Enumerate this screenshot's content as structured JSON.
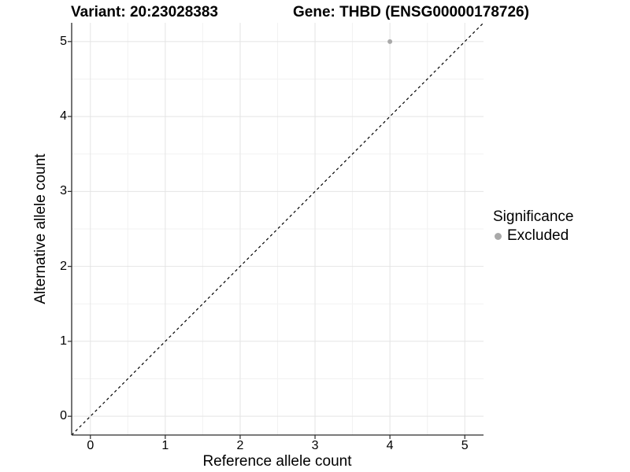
{
  "titles": {
    "variant": "Variant: 20:23028383",
    "gene": "Gene: THBD (ENSG00000178726)"
  },
  "legend": {
    "title": "Significance",
    "items": [
      {
        "label": "Excluded",
        "color": "#a9a9a9"
      }
    ]
  },
  "chart_data": {
    "type": "scatter",
    "title": "Variant: 20:23028383   Gene: THBD (ENSG00000178726)",
    "xlabel": "Reference allele count",
    "ylabel": "Alternative allele count",
    "xlim": [
      -0.25,
      5.25
    ],
    "ylim": [
      -0.25,
      5.25
    ],
    "x_ticks": [
      0,
      1,
      2,
      3,
      4,
      5
    ],
    "y_ticks": [
      0,
      1,
      2,
      3,
      4,
      5
    ],
    "x_minor_ticks": [
      0.5,
      1.5,
      2.5,
      3.5,
      4.5
    ],
    "y_minor_ticks": [
      0.5,
      1.5,
      2.5,
      3.5,
      4.5
    ],
    "grid": true,
    "legend_position": "right",
    "series": [
      {
        "name": "Excluded",
        "color": "#a9a9a9",
        "points": [
          {
            "x": 4,
            "y": 5
          }
        ]
      }
    ],
    "reference_line": {
      "type": "identity",
      "slope": 1,
      "intercept": 0,
      "style": "dashed",
      "color": "#000000"
    }
  },
  "colors": {
    "background": "#ffffff",
    "panel_background": "#ffffff",
    "grid_major": "#e4e4e4",
    "grid_minor": "#f2f2f2",
    "axis_line": "#2b2b2b",
    "tick_mark": "#2b2b2b",
    "text": "#000000",
    "point": "#a9a9a9"
  }
}
